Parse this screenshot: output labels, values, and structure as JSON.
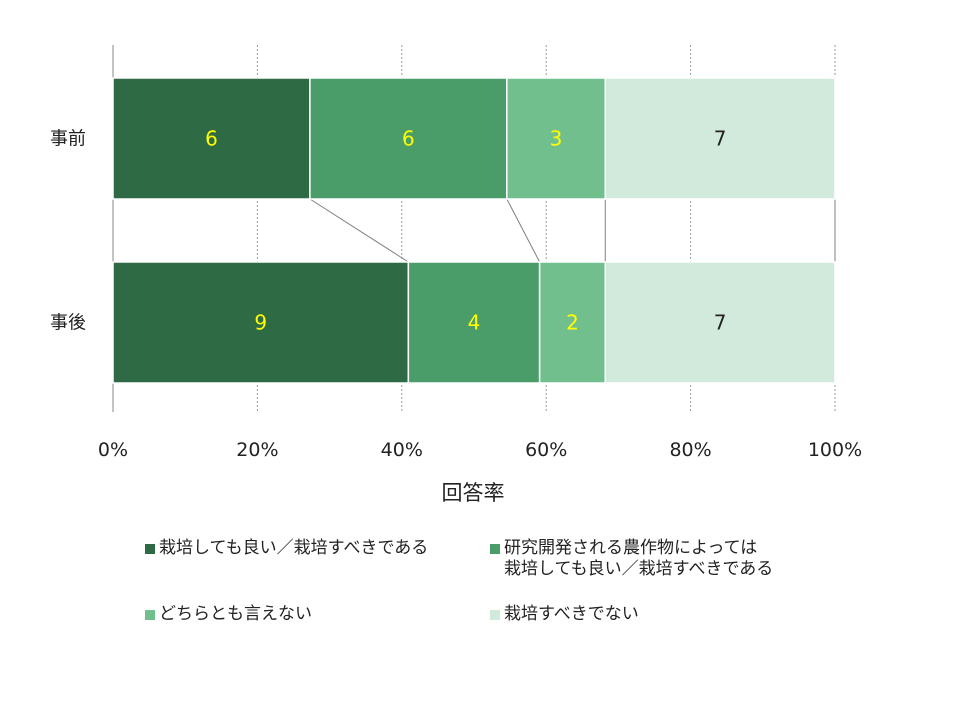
{
  "chart_data": {
    "type": "bar",
    "orientation": "horizontal",
    "stacking": "percent",
    "categories": [
      "事前",
      "事後"
    ],
    "series": [
      {
        "name": "栽培しても良い／栽培すべきである",
        "values": [
          6,
          9
        ],
        "color": "#2e6b45",
        "label_color": "#ffff00"
      },
      {
        "name": "研究開発される農作物によっては\n栽培しても良い／栽培すべきである",
        "values": [
          6,
          4
        ],
        "color": "#4a9c68",
        "label_color": "#ffff00"
      },
      {
        "name": "どちらとも言えない",
        "values": [
          3,
          2
        ],
        "color": "#72bf8e",
        "label_color": "#ffff00"
      },
      {
        "name": "栽培すべきでない",
        "values": [
          7,
          7
        ],
        "color": "#d2eadb",
        "label_color": "#222222"
      }
    ],
    "xlabel": "回答率",
    "ylabel": "",
    "xlim": [
      0,
      100
    ],
    "xticks": [
      "0%",
      "20%",
      "40%",
      "60%",
      "80%",
      "100%"
    ],
    "grid": true,
    "series_lines": true,
    "legend_position": "bottom"
  }
}
